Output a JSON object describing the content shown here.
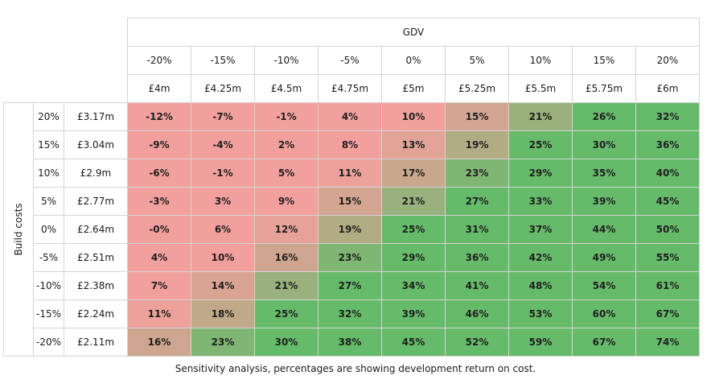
{
  "chart_data": {
    "type": "heatmap",
    "column_header": "GDV",
    "row_header": "Build costs",
    "column_pct": [
      "-20%",
      "-15%",
      "-10%",
      "-5%",
      "0%",
      "5%",
      "10%",
      "15%",
      "20%"
    ],
    "column_values": [
      "£4m",
      "£4.25m",
      "£4.5m",
      "£4.75m",
      "£5m",
      "£5.25m",
      "£5.5m",
      "£5.75m",
      "£6m"
    ],
    "row_pct": [
      "20%",
      "15%",
      "10%",
      "5%",
      "0%",
      "-5%",
      "-10%",
      "-15%",
      "-20%"
    ],
    "row_values": [
      "£3.17m",
      "£3.04m",
      "£2.9m",
      "£2.77m",
      "£2.64m",
      "£2.51m",
      "£2.38m",
      "£2.24m",
      "£2.11m"
    ],
    "cells": [
      [
        "-12%",
        "-7%",
        "-1%",
        "4%",
        "10%",
        "15%",
        "21%",
        "26%",
        "32%"
      ],
      [
        "-9%",
        "-4%",
        "2%",
        "8%",
        "13%",
        "19%",
        "25%",
        "30%",
        "36%"
      ],
      [
        "-6%",
        "-1%",
        "5%",
        "11%",
        "17%",
        "23%",
        "29%",
        "35%",
        "40%"
      ],
      [
        "-3%",
        "3%",
        "9%",
        "15%",
        "21%",
        "27%",
        "33%",
        "39%",
        "45%"
      ],
      [
        "-0%",
        "6%",
        "12%",
        "19%",
        "25%",
        "31%",
        "37%",
        "44%",
        "50%"
      ],
      [
        "4%",
        "10%",
        "16%",
        "23%",
        "29%",
        "36%",
        "42%",
        "49%",
        "55%"
      ],
      [
        "7%",
        "14%",
        "21%",
        "27%",
        "34%",
        "41%",
        "48%",
        "54%",
        "61%"
      ],
      [
        "11%",
        "18%",
        "25%",
        "32%",
        "39%",
        "46%",
        "53%",
        "60%",
        "67%"
      ],
      [
        "16%",
        "23%",
        "30%",
        "38%",
        "45%",
        "52%",
        "59%",
        "67%",
        "74%"
      ]
    ],
    "color_low": "#f2a09d",
    "color_mid": "#c5a88b",
    "color_high": "#66bb6a",
    "color_breaks": [
      10,
      25
    ],
    "caption": "Sensitivity analysis, percentages are showing development return on cost."
  }
}
